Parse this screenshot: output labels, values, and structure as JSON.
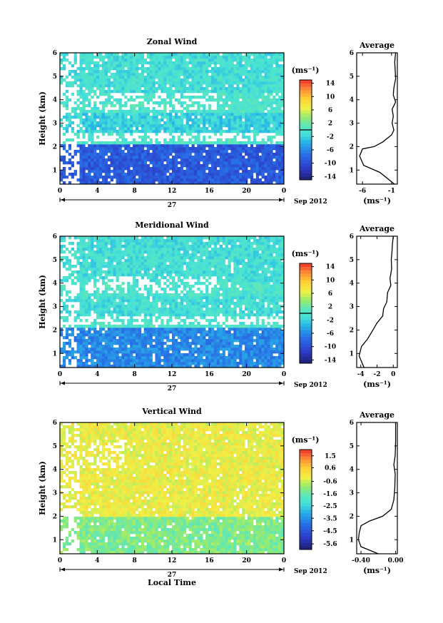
{
  "figure": {
    "time_axis_label": "Local Time",
    "date_day": "27",
    "date_label": "Sep 2012"
  },
  "chart_data": [
    {
      "type": "heatmap",
      "title": "Zonal Wind",
      "xlabel": "",
      "ylabel": "Height (km)",
      "x_ticks": [
        "0",
        "4",
        "8",
        "12",
        "16",
        "20",
        "0"
      ],
      "y_ticks": [
        "1",
        "2",
        "3",
        "4",
        "5",
        "6"
      ],
      "ylim": [
        0.4,
        6.0
      ],
      "colorbar": {
        "unit_label": "(ms⁻¹)",
        "range": [
          -15,
          15
        ],
        "ticks": [
          "14",
          "10",
          "6",
          "2",
          "-2",
          "-6",
          "-10",
          "-14"
        ],
        "tick_values": [
          14,
          10,
          6,
          2,
          -2,
          -6,
          -10,
          -14
        ],
        "contour_at": 0
      },
      "layers": [
        {
          "from_km": 0.4,
          "to_km": 2.1,
          "value": -9
        },
        {
          "from_km": 2.1,
          "to_km": 2.6,
          "value": 0
        },
        {
          "from_km": 2.6,
          "to_km": 3.5,
          "value": -2
        },
        {
          "from_km": 3.5,
          "to_km": 4.3,
          "value": 0
        },
        {
          "from_km": 4.3,
          "to_km": 6.0,
          "value": -1
        }
      ]
    },
    {
      "type": "heatmap",
      "title": "Meridional Wind",
      "xlabel": "",
      "ylabel": "Height (km)",
      "x_ticks": [
        "0",
        "4",
        "8",
        "12",
        "16",
        "20",
        "0"
      ],
      "y_ticks": [
        "1",
        "2",
        "3",
        "4",
        "5",
        "6"
      ],
      "ylim": [
        0.4,
        6.0
      ],
      "colorbar": {
        "unit_label": "(ms⁻¹)",
        "range": [
          -15,
          15
        ],
        "ticks": [
          "14",
          "10",
          "6",
          "2",
          "-2",
          "-6",
          "-10",
          "-14"
        ],
        "tick_values": [
          14,
          10,
          6,
          2,
          -2,
          -6,
          -10,
          -14
        ],
        "contour_at": 0
      },
      "layers": [
        {
          "from_km": 0.4,
          "to_km": 2.1,
          "value": -6
        },
        {
          "from_km": 2.1,
          "to_km": 2.6,
          "value": 0
        },
        {
          "from_km": 2.6,
          "to_km": 3.4,
          "value": -1
        },
        {
          "from_km": 3.4,
          "to_km": 4.1,
          "value": 0
        },
        {
          "from_km": 4.1,
          "to_km": 6.0,
          "value": -1
        }
      ]
    },
    {
      "type": "heatmap",
      "title": "Vertical Wind",
      "xlabel": "Local Time",
      "ylabel": "Height (km)",
      "x_ticks": [
        "0",
        "4",
        "8",
        "12",
        "16",
        "20",
        "0"
      ],
      "y_ticks": [
        "1",
        "2",
        "3",
        "4",
        "5",
        "6"
      ],
      "ylim": [
        0.4,
        6.0
      ],
      "colorbar": {
        "unit_label": "(ms⁻¹)",
        "range": [
          -6.0,
          2.0
        ],
        "ticks": [
          "1.5",
          "0.6",
          "-0.6",
          "-1.6",
          "-2.5",
          "-3.5",
          "-4.5",
          "-5.6"
        ],
        "tick_values": [
          1.5,
          0.55,
          -0.55,
          -1.55,
          -2.5,
          -3.5,
          -4.5,
          -5.55
        ],
        "contour_at": null
      },
      "layers": [
        {
          "from_km": 0.4,
          "to_km": 2.0,
          "value": -1.2
        },
        {
          "from_km": 2.0,
          "to_km": 6.0,
          "value": -0.2
        }
      ]
    }
  ],
  "profiles": [
    {
      "type": "line",
      "title": "Average",
      "xlabel": "(ms⁻¹)",
      "x_ticks": [
        "-6",
        "-1"
      ],
      "x_tick_values": [
        -6,
        -1
      ],
      "xlim": [
        -7,
        0
      ],
      "y_ticks": [
        "1",
        "2",
        "3",
        "4",
        "5",
        "6"
      ],
      "ylim": [
        0.4,
        6.0
      ],
      "points": [
        [
          -0.5,
          0.4
        ],
        [
          -3,
          0.9
        ],
        [
          -5.8,
          1.2
        ],
        [
          -6.5,
          1.6
        ],
        [
          -6,
          1.9
        ],
        [
          -4,
          2.0
        ],
        [
          -2.5,
          2.2
        ],
        [
          -1,
          2.5
        ],
        [
          -0.6,
          2.7
        ],
        [
          -0.9,
          3.0
        ],
        [
          -0.7,
          3.3
        ],
        [
          -0.9,
          3.6
        ],
        [
          -0.3,
          3.9
        ],
        [
          -0.7,
          4.2
        ],
        [
          -0.6,
          4.5
        ],
        [
          -0.3,
          4.9
        ],
        [
          -0.35,
          5.2
        ],
        [
          -0.45,
          5.6
        ],
        [
          -0.3,
          6.0
        ]
      ]
    },
    {
      "type": "line",
      "title": "Average",
      "xlabel": "(ms⁻¹)",
      "x_ticks": [
        "-4",
        "-2",
        "0"
      ],
      "x_tick_values": [
        -4,
        -2,
        0
      ],
      "xlim": [
        -4.5,
        0.5
      ],
      "y_ticks": [
        "1",
        "2",
        "3",
        "4",
        "5",
        "6"
      ],
      "ylim": [
        0.4,
        6.0
      ],
      "points": [
        [
          -3.6,
          0.4
        ],
        [
          -4.2,
          0.9
        ],
        [
          -3.9,
          1.3
        ],
        [
          -3.2,
          1.6
        ],
        [
          -2.5,
          2.0
        ],
        [
          -2,
          2.3
        ],
        [
          -1.3,
          2.6
        ],
        [
          -1.2,
          2.9
        ],
        [
          -0.8,
          3.2
        ],
        [
          -0.7,
          3.6
        ],
        [
          -0.3,
          3.9
        ],
        [
          -0.4,
          4.2
        ],
        [
          -0.2,
          4.6
        ],
        [
          -0.25,
          5.0
        ],
        [
          -0.15,
          5.4
        ],
        [
          -0.1,
          5.7
        ],
        [
          0,
          6.0
        ]
      ]
    },
    {
      "type": "line",
      "title": "Average",
      "xlabel": "(ms⁻¹)",
      "x_ticks": [
        "-0.40",
        "0.00"
      ],
      "x_tick_values": [
        -0.4,
        0.0
      ],
      "xlim": [
        -0.45,
        0.02
      ],
      "y_ticks": [
        "1",
        "2",
        "3",
        "4",
        "5",
        "6"
      ],
      "ylim": [
        0.4,
        6.0
      ],
      "points": [
        [
          -0.2,
          0.4
        ],
        [
          -0.4,
          0.7
        ],
        [
          -0.43,
          1.0
        ],
        [
          -0.42,
          1.3
        ],
        [
          -0.4,
          1.6
        ],
        [
          -0.3,
          1.8
        ],
        [
          -0.15,
          2.0
        ],
        [
          -0.05,
          2.3
        ],
        [
          -0.02,
          2.7
        ],
        [
          -0.01,
          3.2
        ],
        [
          -0.005,
          3.8
        ],
        [
          -0.02,
          4.2
        ],
        [
          -0.005,
          4.6
        ],
        [
          0,
          5.2
        ],
        [
          0,
          6.0
        ]
      ]
    }
  ]
}
